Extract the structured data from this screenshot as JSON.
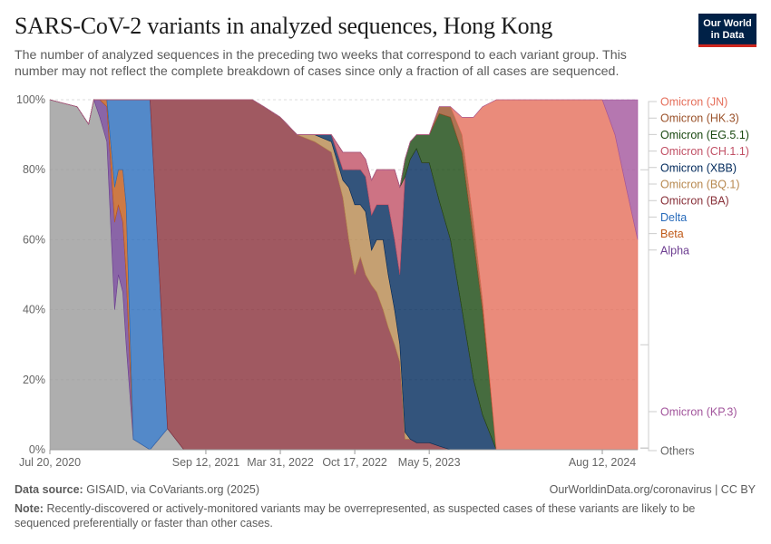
{
  "header": {
    "title": "SARS-CoV-2 variants in analyzed sequences, Hong Kong",
    "subtitle": "The number of analyzed sequences in the preceding two weeks that correspond to each variant group. This number may not reflect the complete breakdown of cases since only a fraction of all cases are sequenced."
  },
  "logo": {
    "line1": "Our World",
    "line2": "in Data"
  },
  "footer": {
    "source_label": "Data source:",
    "source_text": "GISAID, via CoVariants.org (2025)",
    "url": "OurWorldinData.org/coronavirus | CC BY",
    "note_label": "Note:",
    "note_text": "Recently-discovered or actively-monitored variants may be overrepresented, as suspected cases of these variants are likely to be sequenced preferentially or faster than other cases."
  },
  "chart_data": {
    "type": "area",
    "stacked": true,
    "x_type": "date",
    "x": [
      "2020-07-20",
      "2020-10-01",
      "2020-11-01",
      "2020-11-15",
      "2020-12-01",
      "2020-12-20",
      "2021-01-10",
      "2021-01-20",
      "2021-02-01",
      "2021-02-10",
      "2021-03-01",
      "2021-04-15",
      "2021-06-01",
      "2021-07-15",
      "2021-08-15",
      "2021-09-12",
      "2021-10-10",
      "2021-11-15",
      "2021-11-22",
      "2021-11-29",
      "2021-12-15",
      "2022-01-01",
      "2022-01-15",
      "2022-02-15",
      "2022-03-31",
      "2022-05-15",
      "2022-07-01",
      "2022-08-15",
      "2022-09-15",
      "2022-10-01",
      "2022-10-17",
      "2022-11-01",
      "2022-11-15",
      "2022-12-01",
      "2022-12-15",
      "2023-01-01",
      "2023-01-15",
      "2023-02-01",
      "2023-02-15",
      "2023-03-01",
      "2023-03-15",
      "2023-04-01",
      "2023-04-15",
      "2023-05-05",
      "2023-06-01",
      "2023-07-01",
      "2023-08-01",
      "2023-09-01",
      "2023-09-25",
      "2023-11-01",
      "2023-12-15",
      "2024-02-01",
      "2024-05-01",
      "2024-07-01",
      "2024-08-12",
      "2024-09-15",
      "2024-10-15",
      "2024-11-15"
    ],
    "series": [
      {
        "name": "Others",
        "color": "#9a9a9a",
        "values": [
          100,
          98,
          93,
          100,
          95,
          88,
          40,
          50,
          45,
          30,
          3,
          0,
          6,
          0,
          0,
          0,
          0,
          0,
          0,
          0,
          0,
          0,
          0,
          0,
          0,
          0,
          0,
          0,
          0,
          0,
          0,
          0,
          0,
          0,
          0,
          0,
          0,
          0,
          0,
          0,
          0,
          0,
          0,
          0,
          0,
          0,
          0,
          0,
          0,
          0,
          0,
          0,
          0,
          0,
          0,
          0,
          0,
          0
        ]
      },
      {
        "name": "Alpha",
        "color": "#6d3e91",
        "values": [
          0,
          0,
          0,
          0,
          5,
          10,
          25,
          20,
          20,
          20,
          0,
          0,
          0,
          0,
          0,
          0,
          0,
          0,
          0,
          0,
          0,
          0,
          0,
          0,
          0,
          0,
          0,
          0,
          0,
          0,
          0,
          0,
          0,
          0,
          0,
          0,
          0,
          0,
          0,
          0,
          0,
          0,
          0,
          0,
          0,
          0,
          0,
          0,
          0,
          0,
          0,
          0,
          0,
          0,
          0,
          0,
          0,
          0
        ]
      },
      {
        "name": "Beta",
        "color": "#c05917",
        "values": [
          0,
          0,
          0,
          0,
          0,
          2,
          10,
          10,
          15,
          20,
          0,
          0,
          0,
          0,
          0,
          0,
          0,
          0,
          0,
          0,
          0,
          0,
          0,
          0,
          0,
          0,
          0,
          0,
          0,
          0,
          0,
          0,
          0,
          0,
          0,
          0,
          0,
          0,
          0,
          0,
          0,
          0,
          0,
          0,
          0,
          0,
          0,
          0,
          0,
          0,
          0,
          0,
          0,
          0,
          0,
          0,
          0,
          0
        ]
      },
      {
        "name": "Delta",
        "color": "#286bbb",
        "values": [
          0,
          0,
          0,
          0,
          0,
          0,
          25,
          20,
          20,
          30,
          97,
          100,
          0,
          0,
          0,
          0,
          0,
          0,
          0,
          0,
          0,
          0,
          0,
          0,
          0,
          0,
          0,
          0,
          0,
          0,
          0,
          0,
          0,
          0,
          0,
          0,
          0,
          0,
          0,
          0,
          0,
          0,
          0,
          0,
          0,
          0,
          0,
          0,
          0,
          0,
          0,
          0,
          0,
          0,
          0,
          0,
          0,
          0
        ]
      },
      {
        "name": "Omicron (BA)",
        "color": "#883039",
        "values": [
          0,
          0,
          0,
          0,
          0,
          0,
          0,
          0,
          0,
          0,
          0,
          0,
          94,
          100,
          100,
          100,
          100,
          100,
          100,
          100,
          100,
          100,
          100,
          98,
          95,
          90,
          88,
          85,
          72,
          60,
          50,
          55,
          50,
          47,
          45,
          40,
          35,
          30,
          25,
          3,
          3,
          2,
          2,
          2,
          1,
          0,
          0,
          0,
          0,
          0,
          0,
          0,
          0,
          0,
          0,
          0,
          0,
          0
        ]
      },
      {
        "name": "Omicron (BQ.1)",
        "color": "#b7884f",
        "values": [
          0,
          0,
          0,
          0,
          0,
          0,
          0,
          0,
          0,
          0,
          0,
          0,
          0,
          0,
          0,
          0,
          0,
          0,
          0,
          0,
          0,
          0,
          0,
          0,
          0,
          0,
          2,
          3,
          5,
          15,
          20,
          15,
          18,
          10,
          15,
          20,
          15,
          10,
          5,
          2,
          0,
          0,
          0,
          0,
          0,
          0,
          0,
          0,
          0,
          0,
          0,
          0,
          0,
          0,
          0,
          0,
          0,
          0
        ]
      },
      {
        "name": "Omicron (XBB)",
        "color": "#00295b",
        "values": [
          0,
          0,
          0,
          0,
          0,
          0,
          0,
          0,
          0,
          0,
          0,
          0,
          0,
          0,
          0,
          0,
          0,
          0,
          0,
          0,
          0,
          0,
          0,
          0,
          0,
          0,
          0,
          2,
          3,
          5,
          10,
          10,
          10,
          10,
          10,
          10,
          20,
          20,
          20,
          73,
          80,
          84,
          80,
          80,
          70,
          60,
          40,
          20,
          10,
          0,
          0,
          0,
          0,
          0,
          0,
          0,
          0,
          0
        ]
      },
      {
        "name": "Omicron (CH.1.1)",
        "color": "#c15065",
        "values": [
          0,
          0,
          0,
          0,
          0,
          0,
          0,
          0,
          0,
          0,
          0,
          0,
          0,
          0,
          0,
          0,
          0,
          0,
          0,
          0,
          0,
          0,
          0,
          0,
          0,
          0,
          0,
          0,
          5,
          5,
          5,
          5,
          5,
          10,
          10,
          10,
          10,
          20,
          25,
          0,
          0,
          0,
          0,
          0,
          0,
          0,
          0,
          0,
          0,
          0,
          0,
          0,
          0,
          0,
          0,
          0,
          0,
          0
        ]
      },
      {
        "name": "Omicron (EG.5.1)",
        "color": "#18470f",
        "values": [
          0,
          0,
          0,
          0,
          0,
          0,
          0,
          0,
          0,
          0,
          0,
          0,
          0,
          0,
          0,
          0,
          0,
          0,
          0,
          0,
          0,
          0,
          0,
          0,
          0,
          0,
          0,
          0,
          0,
          0,
          0,
          0,
          0,
          0,
          0,
          0,
          0,
          0,
          0,
          5,
          5,
          4,
          8,
          8,
          25,
          35,
          45,
          40,
          30,
          0,
          0,
          0,
          0,
          0,
          0,
          0,
          0,
          0
        ]
      },
      {
        "name": "Omicron (HK.3)",
        "color": "#9a5129",
        "values": [
          0,
          0,
          0,
          0,
          0,
          0,
          0,
          0,
          0,
          0,
          0,
          0,
          0,
          0,
          0,
          0,
          0,
          0,
          0,
          0,
          0,
          0,
          0,
          0,
          0,
          0,
          0,
          0,
          0,
          0,
          0,
          0,
          0,
          0,
          0,
          0,
          0,
          0,
          0,
          0,
          0,
          0,
          0,
          0,
          2,
          3,
          5,
          5,
          3,
          0,
          0,
          0,
          0,
          0,
          0,
          0,
          0,
          0
        ]
      },
      {
        "name": "Omicron (JN)",
        "color": "#e56e5a",
        "values": [
          0,
          0,
          0,
          0,
          0,
          0,
          0,
          0,
          0,
          0,
          0,
          0,
          0,
          0,
          0,
          0,
          0,
          0,
          0,
          0,
          0,
          0,
          0,
          0,
          0,
          0,
          0,
          0,
          0,
          0,
          0,
          0,
          0,
          0,
          0,
          0,
          0,
          0,
          0,
          0,
          0,
          0,
          0,
          0,
          0,
          0,
          5,
          30,
          55,
          100,
          100,
          100,
          100,
          100,
          100,
          90,
          75,
          60
        ]
      },
      {
        "name": "Omicron (KP.3)",
        "color": "#a2559c",
        "values": [
          0,
          0,
          0,
          0,
          0,
          0,
          0,
          0,
          0,
          0,
          0,
          0,
          0,
          0,
          0,
          0,
          0,
          0,
          0,
          0,
          0,
          0,
          0,
          0,
          0,
          0,
          0,
          0,
          0,
          0,
          0,
          0,
          0,
          0,
          0,
          0,
          0,
          0,
          0,
          0,
          0,
          0,
          0,
          0,
          0,
          0,
          0,
          0,
          0,
          0,
          0,
          0,
          0,
          0,
          0,
          10,
          25,
          40
        ]
      }
    ],
    "x_ticks": [
      "Jul 20, 2020",
      "Sep 12, 2021",
      "Mar 31, 2022",
      "Oct 17, 2022",
      "May 5, 2023",
      "Aug 12, 2024"
    ],
    "x_tick_dates": [
      "2020-07-20",
      "2021-09-12",
      "2022-03-31",
      "2022-10-17",
      "2023-05-05",
      "2024-08-12"
    ],
    "y_ticks": [
      "0%",
      "20%",
      "40%",
      "60%",
      "80%",
      "100%"
    ],
    "ylim": [
      0,
      100
    ],
    "grid": "horizontal-dotted",
    "legend": "right"
  }
}
